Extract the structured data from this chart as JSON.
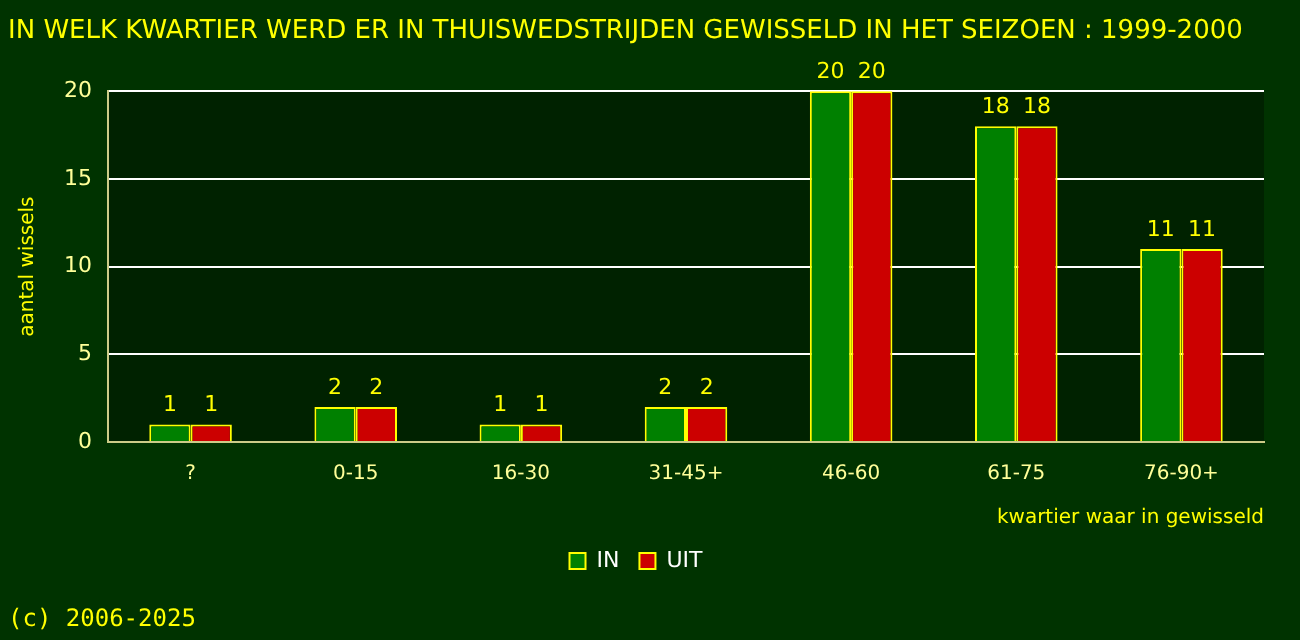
{
  "chart_data": {
    "type": "bar",
    "title": "IN WELK KWARTIER WERD ER IN THUISWEDSTRIJDEN GEWISSELD IN HET SEIZOEN : 1999-2000",
    "xlabel": "kwartier waar in gewisseld",
    "ylabel": "aantal wissels",
    "categories": [
      "?",
      "0-15",
      "16-30",
      "31-45+",
      "46-60",
      "61-75",
      "76-90+"
    ],
    "series": [
      {
        "name": "IN",
        "color": "#008000",
        "values": [
          1,
          2,
          1,
          2,
          20,
          18,
          11
        ]
      },
      {
        "name": "UIT",
        "color": "#cc0000",
        "values": [
          1,
          2,
          1,
          2,
          20,
          18,
          11
        ]
      }
    ],
    "ylim": [
      0,
      20
    ],
    "yticks": [
      0,
      5,
      10,
      15,
      20
    ],
    "grid": "y",
    "legend": "bottom",
    "data_labels": true,
    "annotations": [
      "(c) 2006-2025"
    ]
  }
}
